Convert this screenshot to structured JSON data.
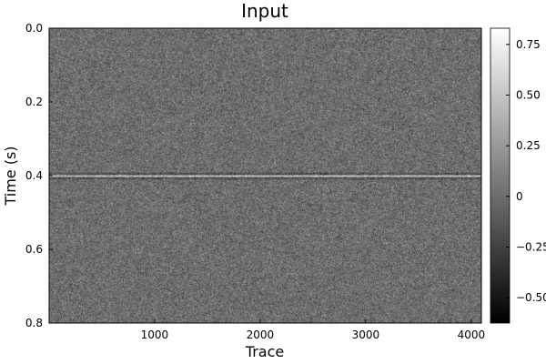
{
  "chart_data": {
    "type": "heatmap",
    "title": "Input",
    "xlabel": "Trace",
    "ylabel": "Time (s)",
    "x_range": [
      1,
      4096
    ],
    "y_range": [
      0.0,
      0.8
    ],
    "y_inverted": true,
    "x_ticks": [
      {
        "value": 1000,
        "label": "1000"
      },
      {
        "value": 2000,
        "label": "2000"
      },
      {
        "value": 3000,
        "label": "3000"
      },
      {
        "value": 4000,
        "label": "4000"
      }
    ],
    "y_ticks": [
      {
        "value": 0.0,
        "label": "0.0"
      },
      {
        "value": 0.2,
        "label": "0.2"
      },
      {
        "value": 0.4,
        "label": "0.4"
      },
      {
        "value": 0.6,
        "label": "0.6"
      },
      {
        "value": 0.8,
        "label": "0.8"
      }
    ],
    "event": {
      "time": 0.4,
      "description": "flat reflection"
    },
    "colormap": "grays",
    "colorbar": {
      "range": [
        -0.625,
        0.83
      ],
      "ticks": [
        {
          "value": -0.5,
          "label": "−0.50"
        },
        {
          "value": -0.25,
          "label": "−0.25"
        },
        {
          "value": 0,
          "label": "0"
        },
        {
          "value": 0.25,
          "label": "0.25"
        },
        {
          "value": 0.5,
          "label": "0.50"
        },
        {
          "value": 0.75,
          "label": "0.75"
        }
      ]
    },
    "grid": false
  }
}
